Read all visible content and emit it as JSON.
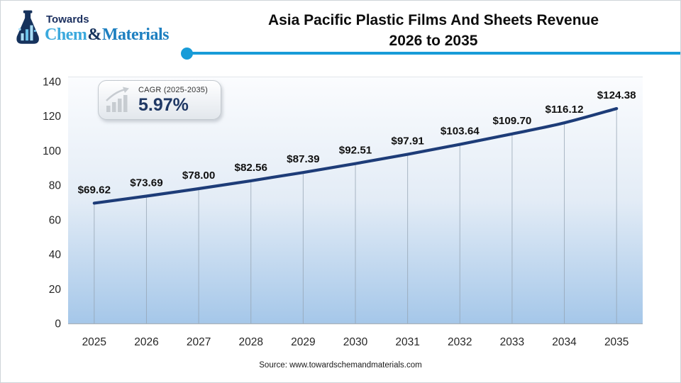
{
  "logo": {
    "towards": "Towards",
    "chem": "Chem",
    "amp": "&",
    "materials": "Materials"
  },
  "title": {
    "line1": "Asia Pacific Plastic Films And Sheets Revenue",
    "line2": "2026 to 2035"
  },
  "cagr": {
    "label": "CAGR (2025-2035)",
    "value": "5.97%"
  },
  "source": {
    "text": "Source: www.towardschemandmaterials.com"
  },
  "colors": {
    "line": "#1d3c78",
    "divider_blue": "#189cd8",
    "accent_navy": "#1f3864",
    "plot_gradient_top": "#fbfcfe",
    "plot_gradient_mid": "#e3ecf6",
    "plot_gradient_bottom": "#a5c7e9",
    "drop_line": "#93a2b1",
    "axis_line": "#a9b2ba",
    "tick_text": "#262626",
    "data_label_text": "#111111"
  },
  "chart_data": {
    "type": "line",
    "title": "Asia Pacific Plastic Films And Sheets Revenue 2026 to 2035",
    "categories": [
      "2025",
      "2026",
      "2027",
      "2028",
      "2029",
      "2030",
      "2031",
      "2032",
      "2033",
      "2034",
      "2035"
    ],
    "values": [
      69.62,
      73.69,
      78.0,
      82.56,
      87.39,
      92.51,
      97.91,
      103.64,
      109.7,
      116.12,
      124.38
    ],
    "labels": [
      "$69.62",
      "$73.69",
      "$78.00",
      "$82.56",
      "$87.39",
      "$92.51",
      "$97.91",
      "$103.64",
      "$109.70",
      "$116.12",
      "$124.38"
    ],
    "xlabel": "",
    "ylabel": "",
    "ylim": [
      0,
      140
    ],
    "yticks": [
      0,
      20,
      40,
      60,
      80,
      100,
      120,
      140
    ],
    "grid": "vertical-drop-lines",
    "legend": "none"
  }
}
